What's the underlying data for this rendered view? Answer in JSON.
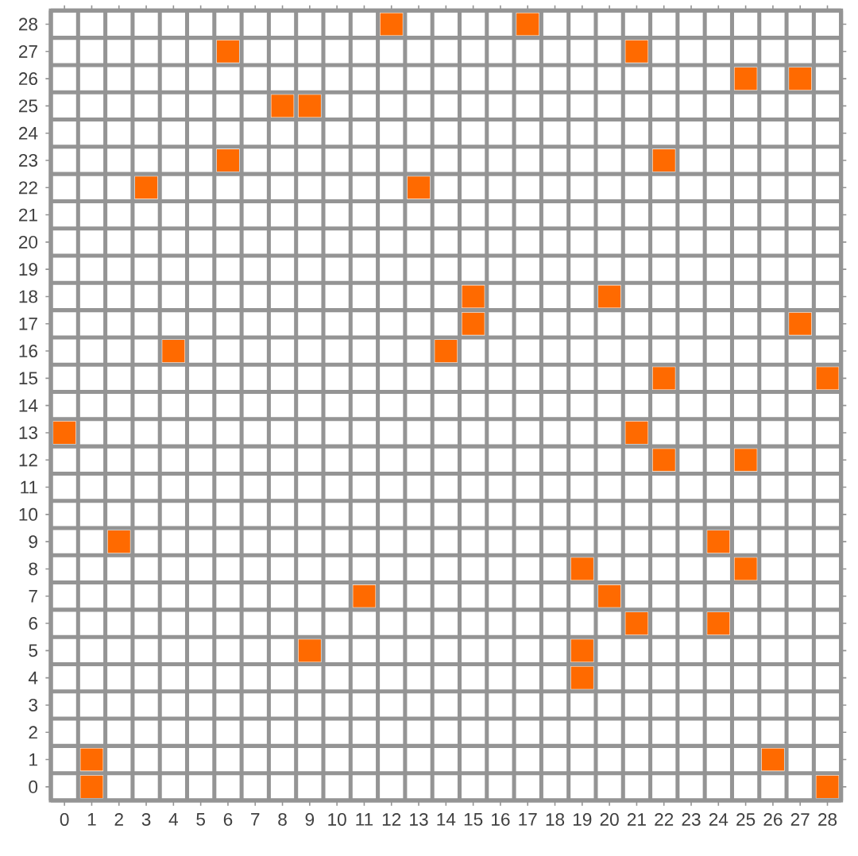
{
  "chart_data": {
    "type": "scatter",
    "marker": "square",
    "grid": true,
    "xlim": [
      -0.5,
      28.5
    ],
    "ylim": [
      -0.5,
      28.5
    ],
    "xticks": [
      0,
      1,
      2,
      3,
      4,
      5,
      6,
      7,
      8,
      9,
      10,
      11,
      12,
      13,
      14,
      15,
      16,
      17,
      18,
      19,
      20,
      21,
      22,
      23,
      24,
      25,
      26,
      27,
      28
    ],
    "yticks": [
      0,
      1,
      2,
      3,
      4,
      5,
      6,
      7,
      8,
      9,
      10,
      11,
      12,
      13,
      14,
      15,
      16,
      17,
      18,
      19,
      20,
      21,
      22,
      23,
      24,
      25,
      26,
      27,
      28
    ],
    "series": [
      {
        "color": "#ff6a00",
        "x": [
          12,
          17,
          6,
          21,
          25,
          27,
          8,
          9,
          6,
          22,
          3,
          13,
          15,
          20,
          15,
          27,
          4,
          14,
          22,
          28,
          0,
          21,
          22,
          25,
          2,
          24,
          19,
          25,
          11,
          20,
          21,
          24,
          9,
          19,
          19,
          1,
          26,
          1,
          28
        ],
        "values": [
          28,
          28,
          27,
          27,
          26,
          26,
          25,
          25,
          23,
          23,
          22,
          22,
          18,
          18,
          17,
          17,
          16,
          16,
          15,
          15,
          13,
          13,
          12,
          12,
          9,
          9,
          8,
          8,
          7,
          7,
          6,
          6,
          5,
          5,
          4,
          1,
          1,
          0,
          0
        ]
      }
    ]
  }
}
